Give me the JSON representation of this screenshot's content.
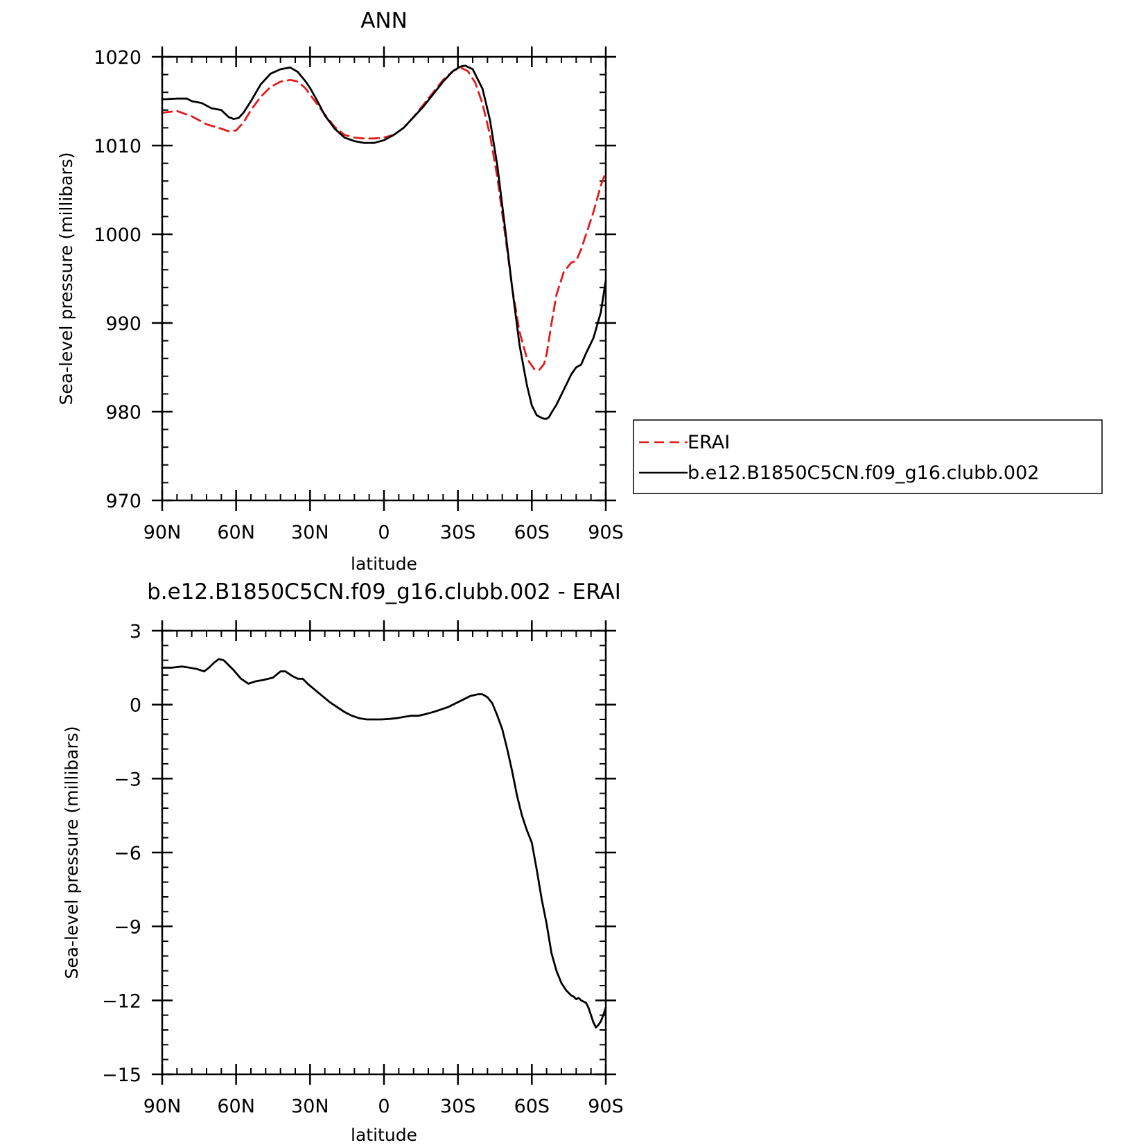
{
  "chart_data": [
    {
      "type": "line",
      "title": "ANN",
      "xlabel": "latitude",
      "ylabel": "Sea-level pressure (millibars)",
      "xlim": [
        90,
        -90
      ],
      "ylim": [
        970,
        1020
      ],
      "grid": false,
      "x_ticks": [
        90,
        60,
        30,
        0,
        -30,
        -60,
        -90
      ],
      "x_tick_labels": [
        "90N",
        "60N",
        "30N",
        "0",
        "30S",
        "60S",
        "90S"
      ],
      "y_ticks": [
        970,
        980,
        990,
        1000,
        1010,
        1020
      ],
      "y_tick_labels": [
        "970",
        "980",
        "990",
        "1000",
        "1010",
        "1020"
      ],
      "legend": {
        "placement": "right-outside"
      },
      "series": [
        {
          "name": "ERAI",
          "color": "#e31a1c",
          "style": "dashed",
          "x": [
            90,
            84,
            78,
            72,
            66,
            63,
            60,
            57,
            54,
            50,
            46,
            42,
            38,
            35,
            32,
            28,
            24,
            20,
            16,
            12,
            8,
            4,
            0,
            -4,
            -8,
            -12,
            -16,
            -20,
            -24,
            -28,
            -31,
            -34,
            -37,
            -40,
            -43,
            -46,
            -49,
            -52,
            -55,
            -58,
            -61,
            -63,
            -65,
            -66,
            -67,
            -68,
            -70,
            -73,
            -76,
            -78,
            -80,
            -82,
            -85,
            -88,
            -90
          ],
          "y": [
            1013.7,
            1013.9,
            1013.3,
            1012.4,
            1011.9,
            1011.6,
            1011.7,
            1012.6,
            1014.0,
            1015.5,
            1016.6,
            1017.2,
            1017.4,
            1017.2,
            1016.5,
            1015.0,
            1013.5,
            1012.1,
            1011.2,
            1010.9,
            1010.8,
            1010.8,
            1010.9,
            1011.2,
            1012.0,
            1013.2,
            1014.6,
            1016.0,
            1017.4,
            1018.4,
            1018.8,
            1018.4,
            1017.1,
            1014.7,
            1011.2,
            1006.4,
            1000.3,
            994.0,
            989.0,
            986.0,
            984.8,
            984.7,
            985.4,
            986.5,
            988.2,
            990.0,
            993.2,
            995.8,
            996.8,
            997.0,
            998.3,
            1000.0,
            1002.5,
            1005.5,
            1007.0
          ]
        },
        {
          "name": "b.e12.B1850C5CN.f09_g16.clubb.002",
          "color": "#000000",
          "style": "solid",
          "x": [
            90,
            84,
            80,
            78,
            74,
            70,
            66,
            63,
            61,
            59,
            57,
            54,
            50,
            46,
            42,
            38,
            35,
            32,
            30,
            27,
            24,
            20,
            16,
            12,
            8,
            4,
            0,
            -4,
            -8,
            -12,
            -16,
            -20,
            -24,
            -28,
            -31,
            -33,
            -36,
            -40,
            -43,
            -46,
            -49,
            -52,
            -55,
            -58,
            -60,
            -62,
            -64,
            -65,
            -66,
            -67,
            -68,
            -70,
            -73,
            -76,
            -78,
            -80,
            -82,
            -85,
            -88,
            -90
          ],
          "y": [
            1015.2,
            1015.3,
            1015.3,
            1015.0,
            1014.8,
            1014.2,
            1014.0,
            1013.2,
            1013.0,
            1013.1,
            1013.7,
            1015.0,
            1016.9,
            1018.1,
            1018.6,
            1018.8,
            1018.3,
            1017.3,
            1016.5,
            1015.0,
            1013.4,
            1011.9,
            1010.9,
            1010.5,
            1010.3,
            1010.3,
            1010.6,
            1011.2,
            1012.0,
            1013.2,
            1014.4,
            1015.8,
            1017.2,
            1018.4,
            1018.9,
            1019.0,
            1018.6,
            1016.4,
            1012.9,
            1007.7,
            1001.0,
            994.0,
            987.5,
            983.0,
            980.7,
            979.6,
            979.3,
            979.2,
            979.2,
            979.4,
            979.9,
            980.8,
            982.5,
            984.2,
            985.0,
            985.3,
            986.6,
            988.3,
            991.2,
            994.8
          ]
        }
      ]
    },
    {
      "type": "line",
      "title": "b.e12.B1850C5CN.f09_g16.clubb.002 - ERAI",
      "xlabel": "latitude",
      "ylabel": "Sea-level pressure (millibars)",
      "xlim": [
        90,
        -90
      ],
      "ylim": [
        -15,
        3
      ],
      "grid": false,
      "x_ticks": [
        90,
        60,
        30,
        0,
        -30,
        -60,
        -90
      ],
      "x_tick_labels": [
        "90N",
        "60N",
        "30N",
        "0",
        "30S",
        "60S",
        "90S"
      ],
      "y_ticks": [
        -15,
        -12,
        -9,
        -6,
        -3,
        0,
        3
      ],
      "y_tick_labels": [
        "−15",
        "−12",
        "−9",
        "−6",
        "−3",
        "0",
        "3"
      ],
      "series": [
        {
          "color": "#000000",
          "style": "solid",
          "x": [
            90,
            86,
            82,
            79,
            76,
            73,
            71,
            69,
            67,
            65,
            63,
            61,
            58,
            55,
            52,
            49,
            45,
            42,
            40,
            37,
            35,
            33,
            31,
            28,
            25,
            22,
            19,
            16,
            13,
            10,
            7,
            4,
            1,
            -2,
            -5,
            -8,
            -11,
            -14,
            -17,
            -20,
            -23,
            -26,
            -29,
            -32,
            -35,
            -38,
            -40,
            -42,
            -44,
            -46,
            -48,
            -50,
            -52,
            -54,
            -56,
            -58,
            -60,
            -62,
            -64,
            -66,
            -67,
            -68,
            -70,
            -72,
            -74,
            -76,
            -77,
            -78,
            -79,
            -80,
            -81,
            -82,
            -83,
            -84,
            -85,
            -86,
            -87,
            -88,
            -89,
            -90
          ],
          "y": [
            1.5,
            1.5,
            1.55,
            1.5,
            1.45,
            1.35,
            1.5,
            1.7,
            1.85,
            1.8,
            1.6,
            1.4,
            1.05,
            0.85,
            0.95,
            1.0,
            1.1,
            1.35,
            1.35,
            1.15,
            1.05,
            1.05,
            0.85,
            0.6,
            0.35,
            0.1,
            -0.1,
            -0.3,
            -0.45,
            -0.55,
            -0.6,
            -0.6,
            -0.6,
            -0.58,
            -0.55,
            -0.5,
            -0.45,
            -0.45,
            -0.38,
            -0.3,
            -0.2,
            -0.1,
            0.05,
            0.2,
            0.35,
            0.42,
            0.42,
            0.3,
            0.05,
            -0.45,
            -1.0,
            -1.8,
            -2.7,
            -3.7,
            -4.5,
            -5.1,
            -5.6,
            -6.7,
            -7.9,
            -8.9,
            -9.5,
            -10.1,
            -10.8,
            -11.3,
            -11.6,
            -11.8,
            -11.85,
            -11.95,
            -11.9,
            -12.0,
            -12.05,
            -12.1,
            -12.3,
            -12.6,
            -12.9,
            -13.1,
            -13.0,
            -12.85,
            -12.6,
            -12.3
          ]
        }
      ]
    }
  ]
}
